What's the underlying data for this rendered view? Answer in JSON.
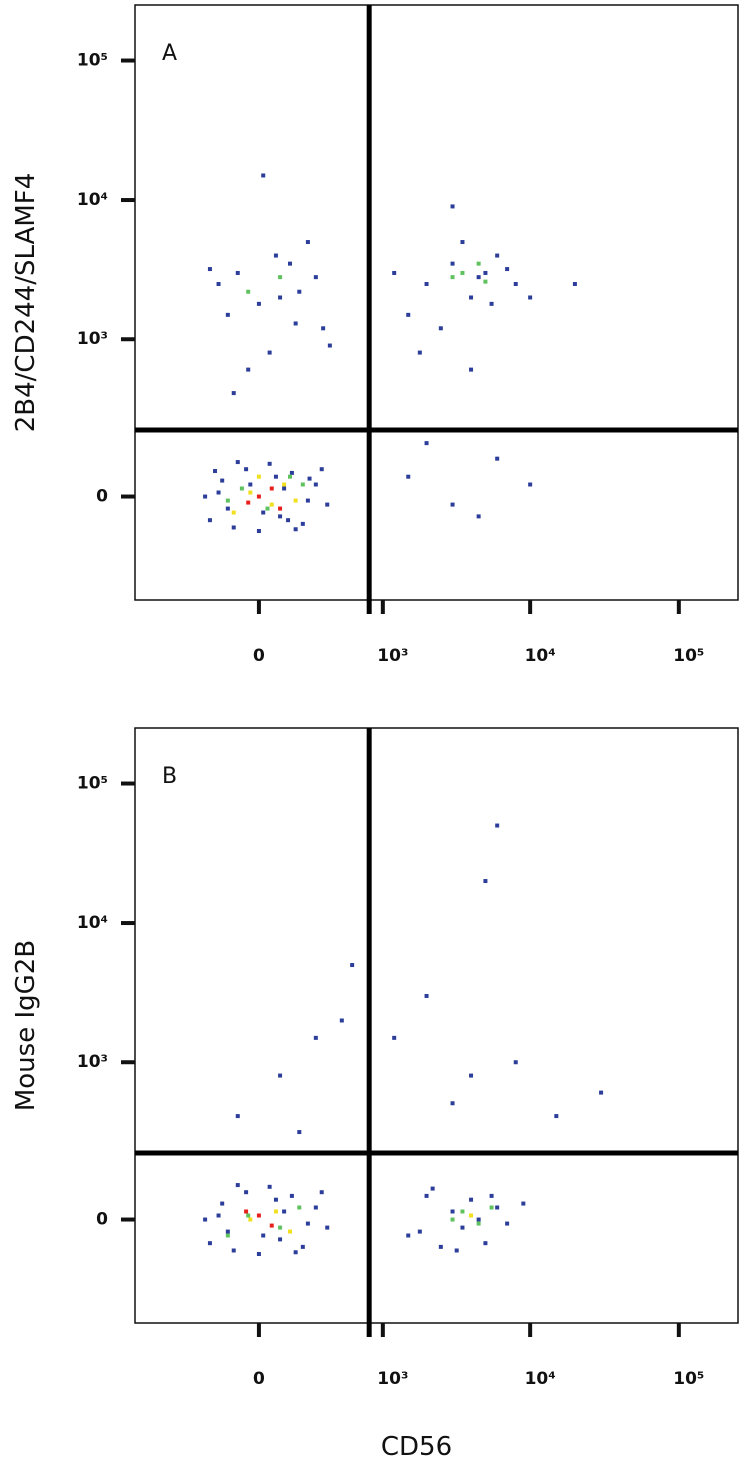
{
  "chart_data": [
    {
      "type": "scatter",
      "title": "A",
      "ylabel": "2B4/CD244/SLAMF4",
      "xlim": [
        -1000,
        250000
      ],
      "ylim": [
        -400,
        250000
      ],
      "xticks": [
        0,
        {
          "value": 1000,
          "label": "10³"
        },
        {
          "value": 10000,
          "label": "10⁴"
        },
        {
          "value": 100000,
          "label": "10⁵"
        }
      ],
      "yticks": [
        0,
        {
          "value": 1000,
          "label": "10³"
        },
        {
          "value": 10000,
          "label": "10⁴"
        },
        {
          "value": 100000,
          "label": "10⁵"
        }
      ],
      "quadrant_lines": {
        "x": 800,
        "y": 200
      },
      "series": [
        {
          "color": "#2c3e99",
          "x": [
            -250,
            -180,
            -120,
            -60,
            0,
            50,
            100,
            160,
            220,
            300,
            380,
            -200,
            -100,
            20,
            120,
            250,
            -150,
            80,
            180,
            -280,
            340,
            -40,
            140,
            260,
            -220,
            -200,
            -100,
            0,
            80,
            200,
            350,
            -150,
            50,
            150,
            300,
            -50,
            100,
            250,
            -250,
            400,
            20,
            180,
            -120,
            2000,
            3000,
            4000,
            5000,
            6000,
            8000,
            1500,
            2500,
            3500,
            4500,
            7000,
            10000,
            1200,
            3000,
            5500,
            20000,
            1800,
            4000,
            1500,
            3000,
            6000,
            10000,
            2000,
            4500
          ],
          "values": [
            -60,
            40,
            -80,
            70,
            -90,
            85,
            -50,
            60,
            -70,
            30,
            -20,
            10,
            90,
            -40,
            20,
            -10,
            -30,
            50,
            -85,
            0,
            70,
            30,
            -60,
            45,
            65,
            2500,
            3000,
            1800,
            4000,
            2200,
            1200,
            1500,
            800,
            3500,
            2800,
            600,
            2000,
            5000,
            3200,
            900,
            15000,
            1300,
            400,
            2500,
            3500,
            2000,
            3000,
            4000,
            2500,
            1500,
            1200,
            5000,
            2800,
            3200,
            2000,
            3000,
            9000,
            1800,
            2500,
            800,
            600,
            50,
            -20,
            100,
            30,
            150,
            -50
          ]
        },
        {
          "color": "#5fc25f",
          "x": [
            -80,
            40,
            150,
            -150,
            220,
            3500,
            4500,
            5000,
            3000,
            100,
            -50
          ],
          "values": [
            20,
            -30,
            50,
            -10,
            30,
            3000,
            3500,
            2600,
            2800,
            2800,
            2200
          ]
        },
        {
          "color": "#f0e020",
          "x": [
            -40,
            60,
            120,
            -120,
            0,
            180
          ],
          "values": [
            10,
            -20,
            30,
            -40,
            50,
            -10
          ]
        },
        {
          "color": "#e8201c",
          "x": [
            0,
            60,
            -50,
            100
          ],
          "values": [
            0,
            20,
            -15,
            -30
          ]
        }
      ]
    },
    {
      "type": "scatter",
      "title": "B",
      "ylabel": "Mouse IgG2B",
      "xlabel": "CD56",
      "xlim": [
        -1000,
        250000
      ],
      "ylim": [
        -400,
        250000
      ],
      "xticks": [
        0,
        {
          "value": 1000,
          "label": "10³"
        },
        {
          "value": 10000,
          "label": "10⁴"
        },
        {
          "value": 100000,
          "label": "10⁵"
        }
      ],
      "yticks": [
        0,
        {
          "value": 1000,
          "label": "10³"
        },
        {
          "value": 10000,
          "label": "10⁴"
        },
        {
          "value": 100000,
          "label": "10⁵"
        }
      ],
      "quadrant_lines": {
        "x": 800,
        "y": 200
      },
      "series": [
        {
          "color": "#2c3e99",
          "x": [
            -250,
            -180,
            -120,
            -60,
            0,
            50,
            100,
            160,
            220,
            300,
            380,
            -200,
            -100,
            20,
            120,
            250,
            -150,
            80,
            180,
            -280,
            340,
            1500,
            2000,
            2500,
            3000,
            3500,
            4000,
            5000,
            6000,
            7000,
            9000,
            2200,
            3200,
            4500,
            5500,
            1800,
            100,
            300,
            -100,
            500,
            200,
            2000,
            5000,
            8000,
            3000,
            4000,
            15000,
            30000,
            6000,
            600,
            1200
          ],
          "values": [
            -60,
            40,
            -80,
            70,
            -90,
            85,
            -50,
            60,
            -70,
            30,
            -20,
            10,
            90,
            -40,
            20,
            -10,
            -30,
            50,
            -85,
            0,
            70,
            -40,
            60,
            -70,
            20,
            -20,
            50,
            -60,
            30,
            -10,
            40,
            80,
            -80,
            0,
            60,
            -30,
            800,
            1500,
            400,
            2000,
            300,
            3000,
            20000,
            1000,
            500,
            800,
            400,
            600,
            50000,
            5000,
            1500
          ]
        },
        {
          "color": "#5fc25f",
          "x": [
            -50,
            100,
            200,
            -150,
            3500,
            4500,
            5500,
            3000
          ],
          "values": [
            10,
            -20,
            30,
            -40,
            20,
            -10,
            30,
            0
          ]
        },
        {
          "color": "#f0e020",
          "x": [
            -40,
            80,
            150,
            4000
          ],
          "values": [
            0,
            20,
            -30,
            10
          ]
        },
        {
          "color": "#e8201c",
          "x": [
            0,
            60,
            -60
          ],
          "values": [
            10,
            -15,
            20
          ]
        }
      ]
    }
  ]
}
